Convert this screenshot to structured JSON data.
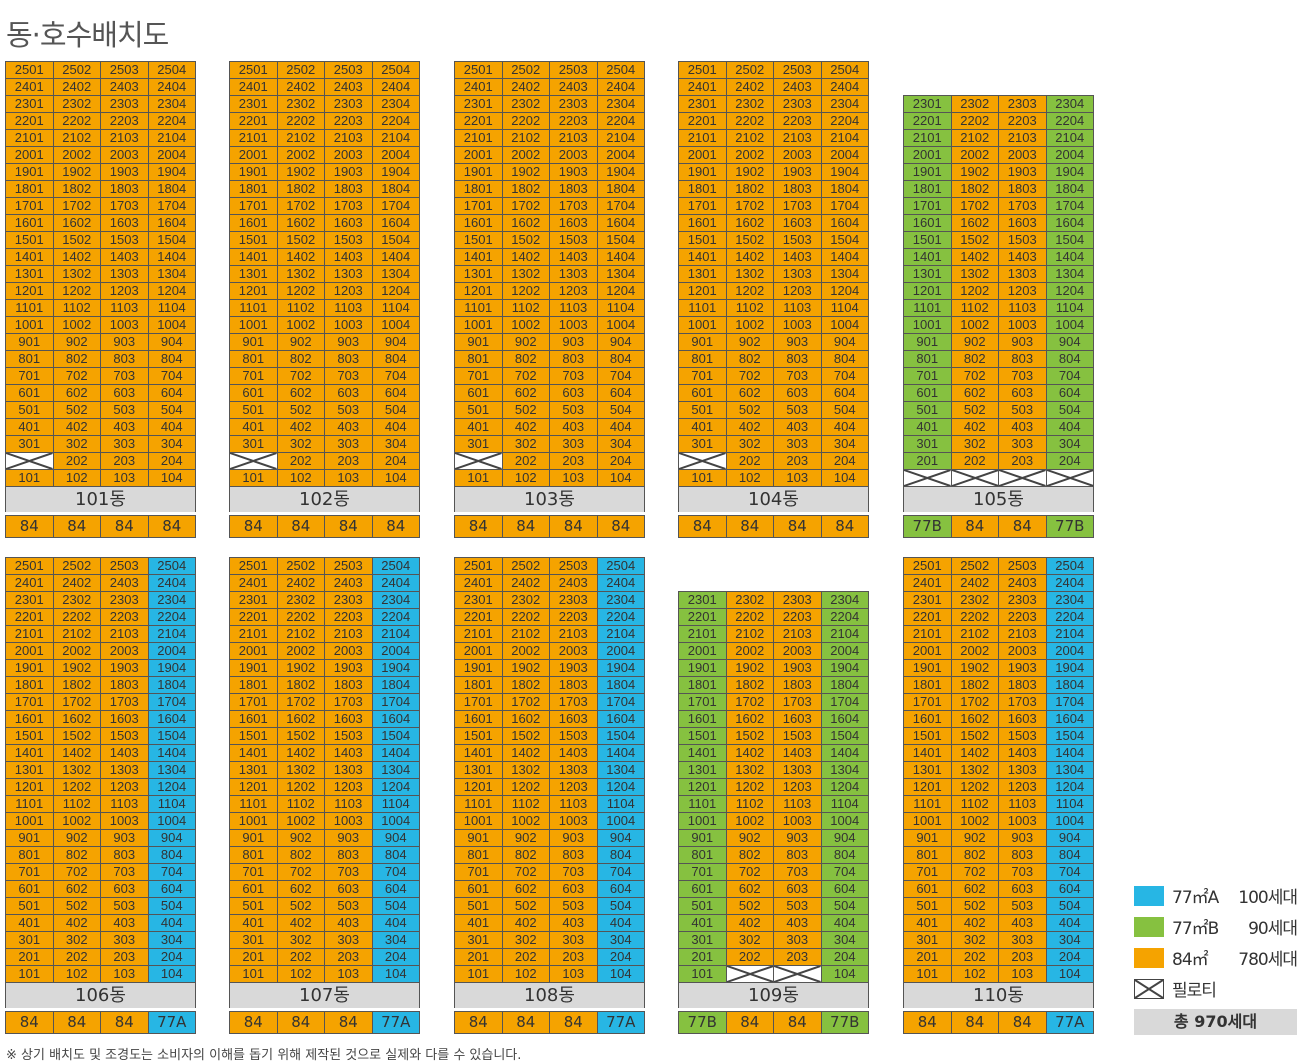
{
  "title": "동·호수배치도",
  "colors": {
    "84": "#F5A300",
    "77A": "#27B6E4",
    "77B": "#86C140",
    "label_bg": "#D9D9D9"
  },
  "buildings": [
    {
      "name": "101동",
      "top_floor": 25,
      "bottom_floor": 1,
      "piloti": [
        "2-1"
      ],
      "lines": [
        "84",
        "84",
        "84",
        "84"
      ]
    },
    {
      "name": "102동",
      "top_floor": 25,
      "bottom_floor": 1,
      "piloti": [
        "2-1"
      ],
      "lines": [
        "84",
        "84",
        "84",
        "84"
      ]
    },
    {
      "name": "103동",
      "top_floor": 25,
      "bottom_floor": 1,
      "piloti": [
        "2-1"
      ],
      "lines": [
        "84",
        "84",
        "84",
        "84"
      ]
    },
    {
      "name": "104동",
      "top_floor": 25,
      "bottom_floor": 1,
      "piloti": [
        "2-1"
      ],
      "lines": [
        "84",
        "84",
        "84",
        "84"
      ]
    },
    {
      "name": "105동",
      "top_floor": 23,
      "bottom_floor": 1,
      "piloti": [
        "1-1",
        "1-2",
        "1-3",
        "1-4"
      ],
      "lines": [
        "77B",
        "84",
        "84",
        "77B"
      ]
    },
    {
      "name": "106동",
      "top_floor": 25,
      "bottom_floor": 1,
      "piloti": [],
      "lines": [
        "84",
        "84",
        "84",
        "77A"
      ]
    },
    {
      "name": "107동",
      "top_floor": 25,
      "bottom_floor": 1,
      "piloti": [],
      "lines": [
        "84",
        "84",
        "84",
        "77A"
      ]
    },
    {
      "name": "108동",
      "top_floor": 25,
      "bottom_floor": 1,
      "piloti": [],
      "lines": [
        "84",
        "84",
        "84",
        "77A"
      ]
    },
    {
      "name": "109동",
      "top_floor": 23,
      "bottom_floor": 1,
      "piloti": [
        "1-2",
        "1-3"
      ],
      "lines": [
        "77B",
        "84",
        "84",
        "77B"
      ]
    },
    {
      "name": "110동",
      "top_floor": 25,
      "bottom_floor": 1,
      "piloti": [],
      "lines": [
        "84",
        "84",
        "84",
        "77A"
      ]
    }
  ],
  "legend": [
    {
      "type": "77㎡A",
      "count": "100세대",
      "color": "#27B6E4"
    },
    {
      "type": "77㎡B",
      "count": "90세대",
      "color": "#86C140"
    },
    {
      "type": "84㎡",
      "count": "780세대",
      "color": "#F5A300"
    },
    {
      "type": "필로티",
      "count": "",
      "color": "piloti"
    }
  ],
  "total": "총 970세대",
  "footnote": "※ 상기 배치도 및 조경도는 소비자의 이해를 돕기 위해 제작된 것으로 실제와 다를 수 있습니다."
}
